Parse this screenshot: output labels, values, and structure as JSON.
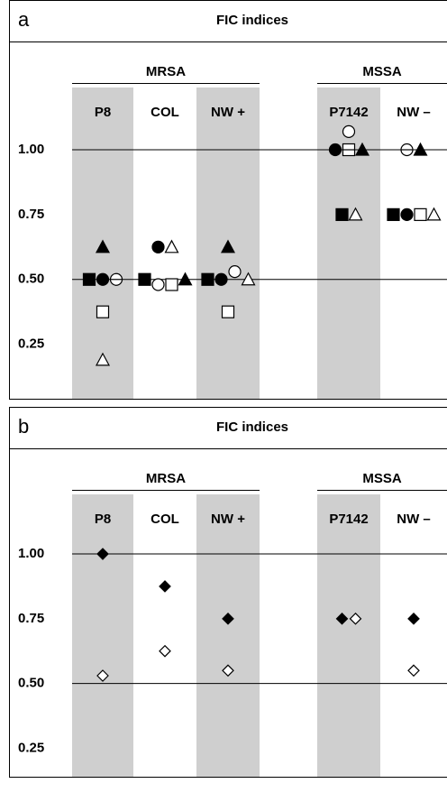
{
  "chart_data": [
    {
      "type": "scatter",
      "panel_label": "a",
      "title": "FIC indices",
      "group_labels": [
        "MRSA",
        "MSSA"
      ],
      "categories": [
        "P8",
        "COL",
        "NW +",
        "P7142",
        "NW –"
      ],
      "ylim": [
        0.04,
        1.24
      ],
      "yticks": [
        {
          "value": 1,
          "label": "1.00"
        },
        {
          "value": 0.75,
          "label": "0.75"
        },
        {
          "value": 0.5,
          "label": "0.50"
        },
        {
          "value": 0.25,
          "label": "0.25"
        }
      ],
      "grid_at": [
        1,
        0.5
      ],
      "series": [
        {
          "marker": "square",
          "color": "#000000",
          "values": [
            0.5,
            0.5,
            0.5,
            0.75,
            0.75
          ]
        },
        {
          "marker": "circle",
          "color": "#000000",
          "values": [
            0.5,
            0.625,
            0.5,
            1,
            0.75
          ]
        },
        {
          "marker": "circle-bar",
          "color": "#ffffff",
          "values": [
            0.5,
            null,
            null,
            null,
            1
          ]
        },
        {
          "marker": "circle",
          "color": "#ffffff",
          "values": [
            null,
            0.48,
            0.53,
            1.07,
            null
          ]
        },
        {
          "marker": "square",
          "color": "#ffffff",
          "values": [
            0.375,
            0.48,
            0.375,
            null,
            0.75
          ]
        },
        {
          "marker": "square-bar",
          "color": "#ffffff",
          "values": [
            null,
            null,
            null,
            1,
            null
          ]
        },
        {
          "marker": "triangle",
          "color": "#000000",
          "values": [
            0.625,
            0.5,
            0.625,
            1,
            1
          ]
        },
        {
          "marker": "triangle",
          "color": "#ffffff",
          "values": [
            0.19,
            0.625,
            0.5,
            0.75,
            0.75
          ]
        }
      ]
    },
    {
      "type": "scatter",
      "panel_label": "b",
      "title": "FIC indices",
      "group_labels": [
        "MRSA",
        "MSSA"
      ],
      "categories": [
        "P8",
        "COL",
        "NW +",
        "P7142",
        "NW –"
      ],
      "ylim": [
        0.14,
        1.23
      ],
      "yticks": [
        {
          "value": 1,
          "label": "1.00"
        },
        {
          "value": 0.75,
          "label": "0.75"
        },
        {
          "value": 0.5,
          "label": "0.50"
        },
        {
          "value": 0.25,
          "label": "0.25"
        }
      ],
      "grid_at": [
        1,
        0.5
      ],
      "series": [
        {
          "marker": "diamond",
          "color": "#000000",
          "values": [
            1,
            0.875,
            0.75,
            0.75,
            0.75
          ]
        },
        {
          "marker": "diamond",
          "color": "#ffffff",
          "values": [
            0.53,
            0.625,
            0.55,
            0.75,
            0.55
          ]
        }
      ]
    }
  ]
}
